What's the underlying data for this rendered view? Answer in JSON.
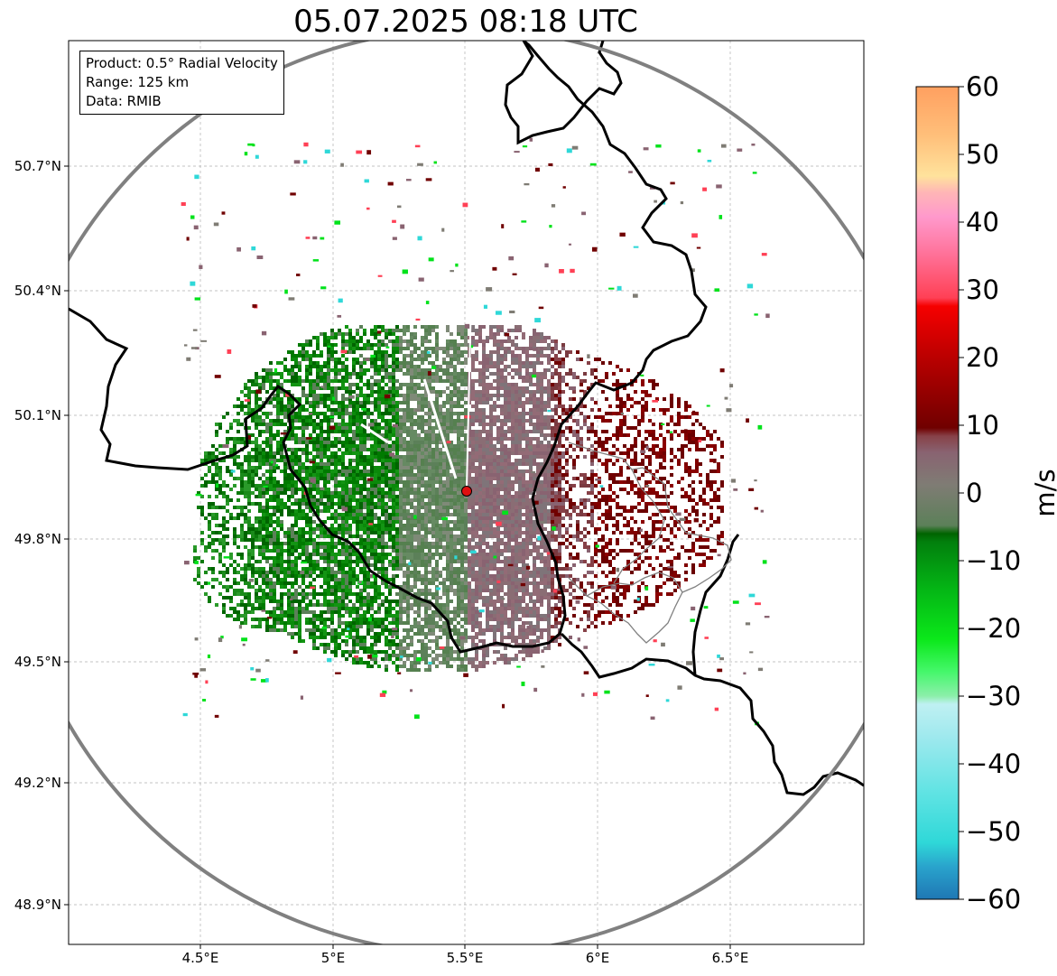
{
  "title": "05.07.2025 08:18 UTC",
  "info": {
    "product": "Product: 0.5° Radial Velocity",
    "range": "Range: 125 km",
    "data": "Data: RMIB"
  },
  "axes": {
    "lat_ticks": [
      "50.7°N",
      "50.4°N",
      "50.1°N",
      "49.8°N",
      "49.5°N",
      "49.2°N",
      "48.9°N"
    ],
    "lon_ticks": [
      "4.5°E",
      "5°E",
      "5.5°E",
      "6°E",
      "6.5°E"
    ]
  },
  "colorbar": {
    "unit": "m/s",
    "ticks": [
      "60",
      "50",
      "40",
      "30",
      "20",
      "10",
      "0",
      "−10",
      "−20",
      "−30",
      "−40",
      "−50",
      "−60"
    ],
    "min": -60,
    "max": 60
  },
  "map": {
    "radar_site": {
      "lat": 49.914,
      "lon": 5.505
    },
    "lon_range": [
      4.0,
      7.0
    ],
    "lat_range": [
      48.8,
      50.98
    ],
    "range_ring_km": 125
  }
}
